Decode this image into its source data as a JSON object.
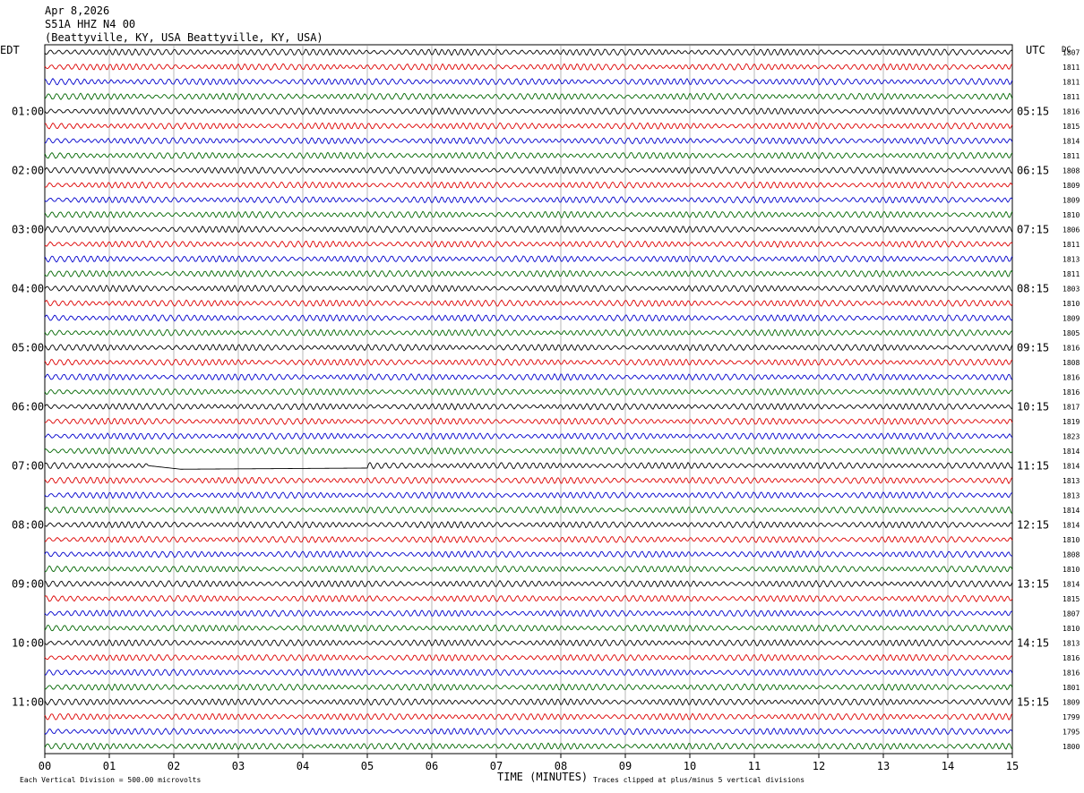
{
  "header": {
    "date": "Apr 8,2026",
    "station": "S51A HHZ N4 00",
    "location": "(Beattyville, KY, USA Beattyville, KY, USA)"
  },
  "left_zone": "EDT",
  "right_zone": "UTC",
  "right_col_header": "DC",
  "footer": {
    "scale_note": "Each Vertical Division =  500.00 microvolts",
    "xlabel": "TIME (MINUTES)",
    "clip_note": "Traces clipped at plus/minus 5 vertical divisions"
  },
  "colors": {
    "trace_cycle": [
      "#000000",
      "#dd0000",
      "#0000cc",
      "#006600"
    ],
    "grid": "#888888",
    "text": "#000000"
  },
  "chart_data": {
    "type": "line",
    "title": "S51A HHZ N4 00",
    "xlabel": "TIME (MINUTES)",
    "x_ticks": [
      "00",
      "01",
      "02",
      "03",
      "04",
      "05",
      "06",
      "07",
      "08",
      "09",
      "10",
      "11",
      "12",
      "13",
      "14",
      "15"
    ],
    "xlim": [
      0,
      15
    ],
    "minutes_per_row": 15,
    "rows": 48,
    "left_hour_labels": [
      "01:00",
      "02:00",
      "03:00",
      "04:00",
      "05:00",
      "06:00",
      "07:00",
      "08:00",
      "09:00",
      "10:00",
      "11:00"
    ],
    "right_hour_labels": [
      "05:15",
      "06:15",
      "07:15",
      "08:15",
      "09:15",
      "10:15",
      "11:15",
      "12:15",
      "13:15",
      "14:15",
      "15:15"
    ],
    "hour_label_first_row": 4,
    "hour_label_every": 4,
    "dc_offsets": [
      1807,
      1811,
      1811,
      1811,
      1816,
      1815,
      1814,
      1811,
      1808,
      1809,
      1809,
      1810,
      1806,
      1811,
      1813,
      1811,
      1803,
      1810,
      1809,
      1805,
      1816,
      1808,
      1816,
      1816,
      1817,
      1819,
      1823,
      1814,
      1814,
      1813,
      1813,
      1814,
      1814,
      1810,
      1808,
      1810,
      1814,
      1815,
      1807,
      1810,
      1813,
      1816,
      1816,
      1801,
      1809,
      1799,
      1795,
      1800
    ],
    "gap_segment": {
      "row": 28,
      "from_minute": 1.6,
      "to_minute": 5.0
    }
  }
}
